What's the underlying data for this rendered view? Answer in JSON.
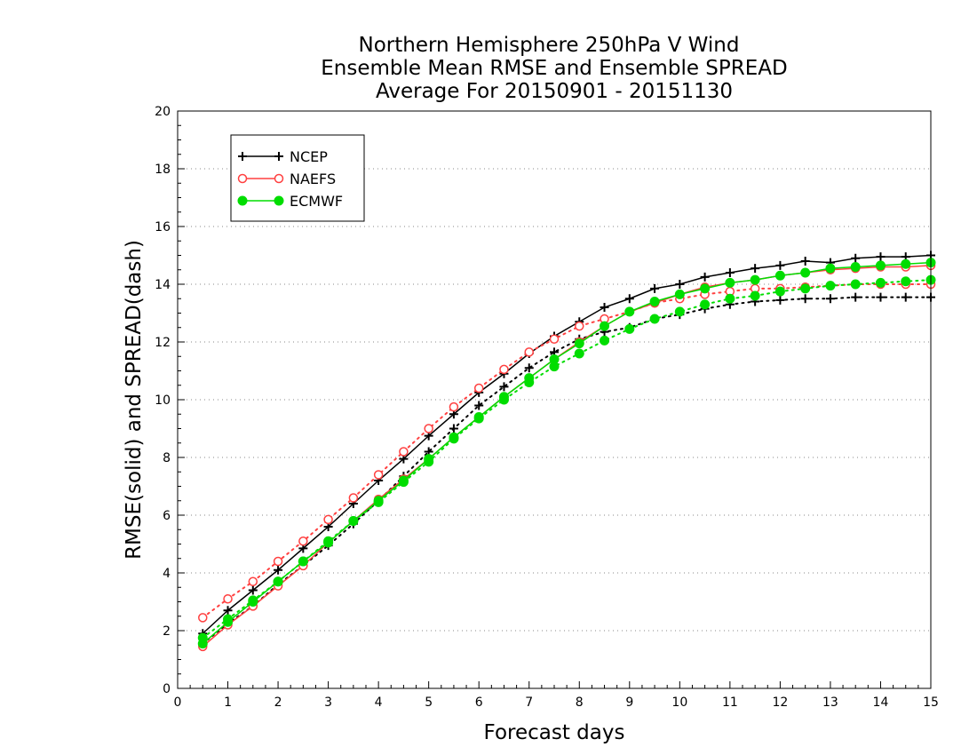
{
  "chart_data": {
    "type": "line",
    "title_lines": [
      "Northern Hemisphere 250hPa V Wind",
      "Ensemble Mean RMSE and Ensemble SPREAD",
      "Average For 20150901 - 20151130"
    ],
    "xlabel": "Forecast days",
    "ylabel": "RMSE(solid) and SPREAD(dash)",
    "xlim": [
      0,
      15
    ],
    "ylim": [
      0,
      20
    ],
    "xticks": [
      0,
      1,
      2,
      3,
      4,
      5,
      6,
      7,
      8,
      9,
      10,
      11,
      12,
      13,
      14,
      15
    ],
    "yticks": [
      0,
      2,
      4,
      6,
      8,
      10,
      12,
      14,
      16,
      18,
      20
    ],
    "grid": "horizontal dotted",
    "legend_position": "top-left",
    "x": [
      0.5,
      1,
      1.5,
      2,
      2.5,
      3,
      3.5,
      4,
      4.5,
      5,
      5.5,
      6,
      6.5,
      7,
      7.5,
      8,
      8.5,
      9,
      9.5,
      10,
      10.5,
      11,
      11.5,
      12,
      12.5,
      13,
      13.5,
      14,
      14.5,
      15
    ],
    "series": [
      {
        "name": "NCEP",
        "color": "#000000",
        "marker": "plus",
        "rmse": [
          1.9,
          2.7,
          3.4,
          4.1,
          4.85,
          5.6,
          6.4,
          7.2,
          7.95,
          8.75,
          9.5,
          10.25,
          10.9,
          11.6,
          12.2,
          12.7,
          13.2,
          13.5,
          13.85,
          14.0,
          14.25,
          14.4,
          14.55,
          14.65,
          14.8,
          14.75,
          14.9,
          14.95,
          14.95,
          15.0
        ],
        "spread": [
          1.55,
          2.25,
          2.85,
          3.6,
          4.25,
          4.95,
          5.7,
          6.5,
          7.35,
          8.2,
          9.0,
          9.8,
          10.45,
          11.1,
          11.65,
          12.1,
          12.35,
          12.5,
          12.8,
          12.95,
          13.15,
          13.3,
          13.4,
          13.45,
          13.5,
          13.5,
          13.55,
          13.55,
          13.55,
          13.55
        ]
      },
      {
        "name": "NAEFS",
        "color": "#ff4040",
        "marker": "open-circle",
        "rmse": [
          1.45,
          2.2,
          2.85,
          3.55,
          4.25,
          5.05,
          5.8,
          6.55,
          7.25,
          7.95,
          8.7,
          9.4,
          10.1,
          10.75,
          11.4,
          12.0,
          12.55,
          13.05,
          13.35,
          13.65,
          13.9,
          14.05,
          14.15,
          14.3,
          14.4,
          14.5,
          14.55,
          14.6,
          14.6,
          14.65
        ],
        "spread": [
          2.45,
          3.1,
          3.7,
          4.4,
          5.1,
          5.85,
          6.6,
          7.4,
          8.2,
          9.0,
          9.75,
          10.4,
          11.05,
          11.65,
          12.1,
          12.55,
          12.8,
          13.05,
          13.35,
          13.5,
          13.65,
          13.75,
          13.85,
          13.85,
          13.9,
          13.95,
          14.0,
          14.0,
          14.0,
          14.0
        ]
      },
      {
        "name": "ECMWF",
        "color": "#00dd00",
        "marker": "filled-circle",
        "rmse": [
          1.55,
          2.3,
          3.0,
          3.7,
          4.4,
          5.05,
          5.8,
          6.5,
          7.2,
          7.95,
          8.7,
          9.4,
          10.1,
          10.75,
          11.4,
          11.95,
          12.55,
          13.05,
          13.4,
          13.65,
          13.85,
          14.05,
          14.15,
          14.3,
          14.4,
          14.55,
          14.6,
          14.65,
          14.7,
          14.75
        ],
        "spread": [
          1.75,
          2.4,
          3.05,
          3.7,
          4.4,
          5.1,
          5.8,
          6.45,
          7.15,
          7.85,
          8.65,
          9.35,
          10.0,
          10.6,
          11.15,
          11.6,
          12.05,
          12.45,
          12.8,
          13.05,
          13.3,
          13.5,
          13.6,
          13.75,
          13.85,
          13.95,
          14.0,
          14.05,
          14.1,
          14.15
        ]
      }
    ]
  }
}
